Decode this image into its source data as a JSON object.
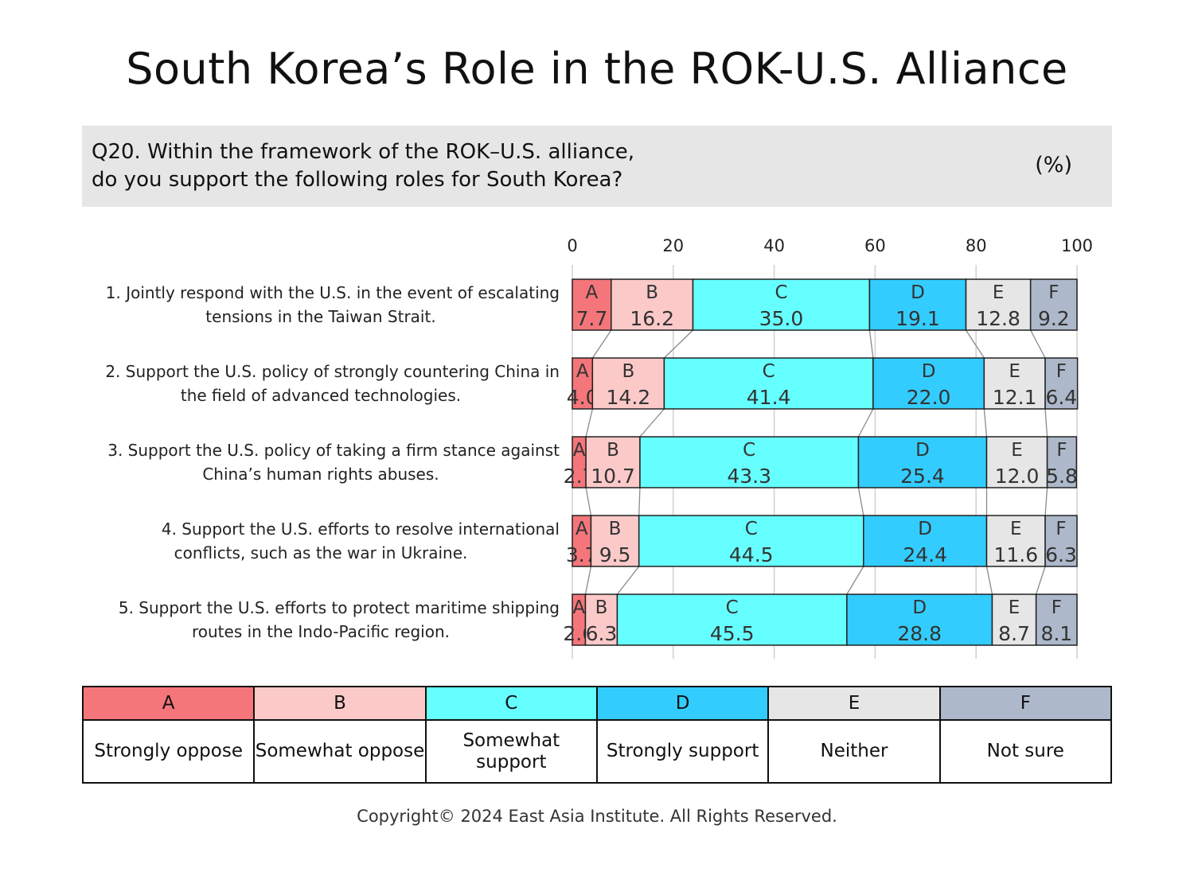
{
  "title": "South Korea’s Role in the ROK-U.S. Alliance",
  "question": {
    "line1": "Q20. Within the framework of the ROK–U.S. alliance,",
    "line2": "do you support the following roles for South Korea?",
    "unit": "(%)"
  },
  "colors": {
    "A": "#f4767a",
    "B": "#fcc9c9",
    "C": "#66ffff",
    "D": "#33ccff",
    "E": "#e7e6e7",
    "F": "#adb9ca"
  },
  "chart_data": {
    "type": "bar",
    "orientation": "horizontal-stacked-100",
    "xlim": [
      0,
      100
    ],
    "xticks": [
      "0",
      "20",
      "40",
      "60",
      "80",
      "100"
    ],
    "grid": true,
    "categories": [
      [
        "1. Jointly respond with the U.S. in the event of escalating",
        "tensions in the Taiwan Strait."
      ],
      [
        "2. Support the U.S. policy of strongly countering China in",
        "the field of advanced technologies."
      ],
      [
        "3. Support the U.S. policy of taking a firm stance against",
        "China’s human rights abuses."
      ],
      [
        "4. Support the U.S. efforts to resolve international",
        "conflicts, such as the war in Ukraine."
      ],
      [
        "5. Support the U.S. efforts to protect maritime shipping",
        "routes in the Indo-Pacific region."
      ]
    ],
    "series": [
      {
        "name": "A",
        "values": [
          "7.7",
          "4.0",
          "2.7",
          "3.7",
          "2.6"
        ]
      },
      {
        "name": "B",
        "values": [
          "16.2",
          "14.2",
          "10.7",
          "9.5",
          "6.3"
        ]
      },
      {
        "name": "C",
        "values": [
          "35.0",
          "41.4",
          "43.3",
          "44.5",
          "45.5"
        ]
      },
      {
        "name": "D",
        "values": [
          "19.1",
          "22.0",
          "25.4",
          "24.4",
          "28.8"
        ]
      },
      {
        "name": "E",
        "values": [
          "12.8",
          "12.1",
          "12.0",
          "11.6",
          "8.7"
        ]
      },
      {
        "name": "F",
        "values": [
          "9.2",
          "6.4",
          "5.8",
          "6.3",
          "8.1"
        ]
      }
    ]
  },
  "legend": [
    {
      "key": "A",
      "label": "Strongly oppose"
    },
    {
      "key": "B",
      "label": "Somewhat oppose"
    },
    {
      "key": "C",
      "label": "Somewhat support"
    },
    {
      "key": "D",
      "label": "Strongly support"
    },
    {
      "key": "E",
      "label": "Neither"
    },
    {
      "key": "F",
      "label": "Not sure"
    }
  ],
  "copyright": "Copyright© 2024 East Asia Institute. All Rights Reserved."
}
